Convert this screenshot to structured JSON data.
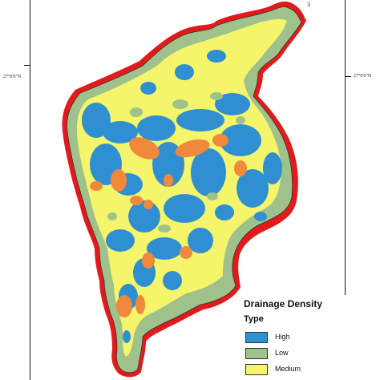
{
  "map": {
    "corner_label": "3",
    "latitude_labels": {
      "left": "27°0'0\"N",
      "right": "27°0'0\"N"
    }
  },
  "legend": {
    "title": "Drainage Density",
    "subtitle": "Type",
    "items": [
      {
        "label": "High",
        "color": "#2f8fd0"
      },
      {
        "label": "Low",
        "color": "#9fc28c"
      },
      {
        "label": "Medium",
        "color": "#f5f56b"
      }
    ]
  },
  "colors": {
    "boundary_red": "#e31a1c",
    "high": "#2f8fd0",
    "low": "#9fc28c",
    "medium": "#f5f56b",
    "orange": "#f0893c"
  }
}
